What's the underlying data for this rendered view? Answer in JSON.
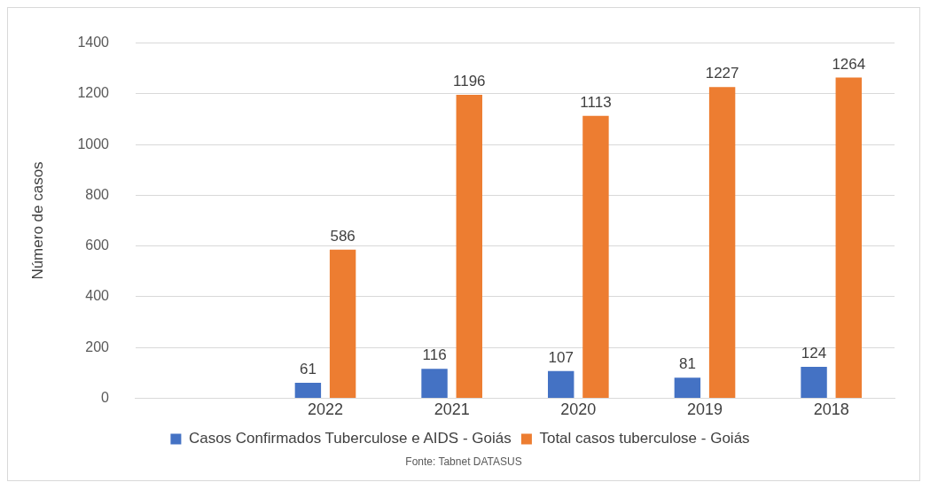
{
  "chart_data": {
    "type": "bar",
    "ylabel": "Número de casos",
    "categories": [
      null,
      "2022",
      "2021",
      "2020",
      "2019",
      "2018"
    ],
    "series": [
      {
        "name": "Casos Confirmados Tuberculose e AIDS - Goiás",
        "color": "#4472c4",
        "values": [
          null,
          61,
          116,
          107,
          81,
          124
        ]
      },
      {
        "name": "Total casos tuberculose - Goiás",
        "color": "#ed7d31",
        "values": [
          null,
          586,
          1196,
          1113,
          1227,
          1264
        ]
      }
    ],
    "ylim": [
      0,
      1400
    ],
    "yticks": [
      0,
      200,
      400,
      600,
      800,
      1000,
      1200,
      1400
    ],
    "grid": "y",
    "legend": "bottom",
    "data_labels": true,
    "annotations": [
      "Fonte: Tabnet DATASUS"
    ]
  }
}
